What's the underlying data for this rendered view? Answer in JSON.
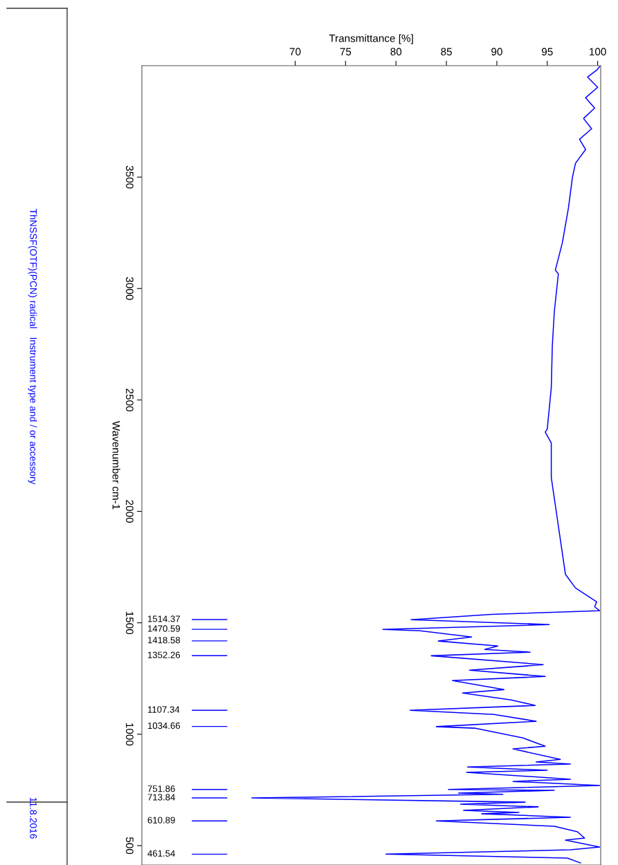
{
  "chart_data": {
    "type": "line",
    "xlabel": "Transmittance [%]",
    "ylabel": "Wavenumber cm-1",
    "xlim": [
      54.8,
      100.3
    ],
    "xticks": [
      70,
      75,
      80,
      85,
      90,
      95,
      100
    ],
    "ylim": [
      413,
      4000
    ],
    "yticks": [
      500,
      1000,
      1500,
      2000,
      2500,
      3000,
      3500
    ],
    "grid": false,
    "series": [
      {
        "color": "#0000ff",
        "values": [
          3996,
          3980,
          3949,
          3903,
          3856,
          3810,
          3763,
          3717,
          3670,
          3624,
          3562,
          3500,
          3361,
          3206,
          3082,
          3066,
          2896,
          2741,
          2555,
          2369,
          2356,
          2307,
          2152,
          2059,
          1935,
          1811,
          1718,
          1656,
          1594,
          1572,
          1554,
          1538,
          1514,
          1510,
          1492,
          1470,
          1464,
          1436,
          1418,
          1396,
          1380,
          1368,
          1352,
          1312,
          1287,
          1259,
          1241,
          1200,
          1185,
          1154,
          1129,
          1107,
          1089,
          1058,
          1034,
          1027,
          983,
          946,
          934,
          887,
          875,
          866,
          853,
          838,
          829,
          798,
          788,
          770,
          752,
          748,
          736,
          730,
          714,
          695,
          686,
          674,
          658,
          649,
          643,
          627,
          611,
          587,
          562,
          534,
          525,
          494,
          481,
          462,
          444,
          422
        ],
        "x": [
          100.2,
          99.9,
          99.0,
          100.0,
          98.8,
          99.7,
          98.6,
          99.4,
          98.2,
          98.8,
          97.8,
          97.5,
          97.1,
          96.5,
          95.8,
          96.1,
          95.7,
          95.5,
          95.4,
          95.0,
          94.8,
          95.4,
          95.4,
          95.7,
          96.1,
          96.5,
          96.8,
          97.8,
          99.9,
          99.7,
          100.2,
          89.5,
          81.5,
          84.0,
          95.2,
          78.7,
          82.4,
          87.5,
          84.2,
          90.1,
          88.8,
          93.3,
          83.5,
          94.6,
          87.3,
          94.8,
          85.6,
          90.7,
          86.6,
          91.4,
          93.8,
          81.4,
          89.7,
          93.9,
          84.0,
          87.8,
          92.6,
          94.8,
          91.6,
          96.3,
          93.9,
          97.3,
          87.1,
          95.0,
          87.0,
          97.3,
          91.6,
          100.2,
          85.2,
          95.7,
          86.2,
          90.6,
          65.7,
          92.8,
          86.4,
          94.1,
          86.7,
          92.2,
          88.5,
          97.3,
          84.0,
          95.7,
          98.0,
          98.7,
          96.8,
          100.2,
          97.3,
          79.0,
          97.0,
          98.3
        ]
      }
    ],
    "annotations": [
      "1514.37",
      "1470.59",
      "1418.58",
      "1352.26",
      "1107.34",
      "1034.66",
      "751.86",
      "713.84",
      "610.89",
      "461.54",
      "ThNSSF(OTF)(PCN) radical",
      "Instrument type and / or accessory",
      "11.8.2016"
    ]
  }
}
